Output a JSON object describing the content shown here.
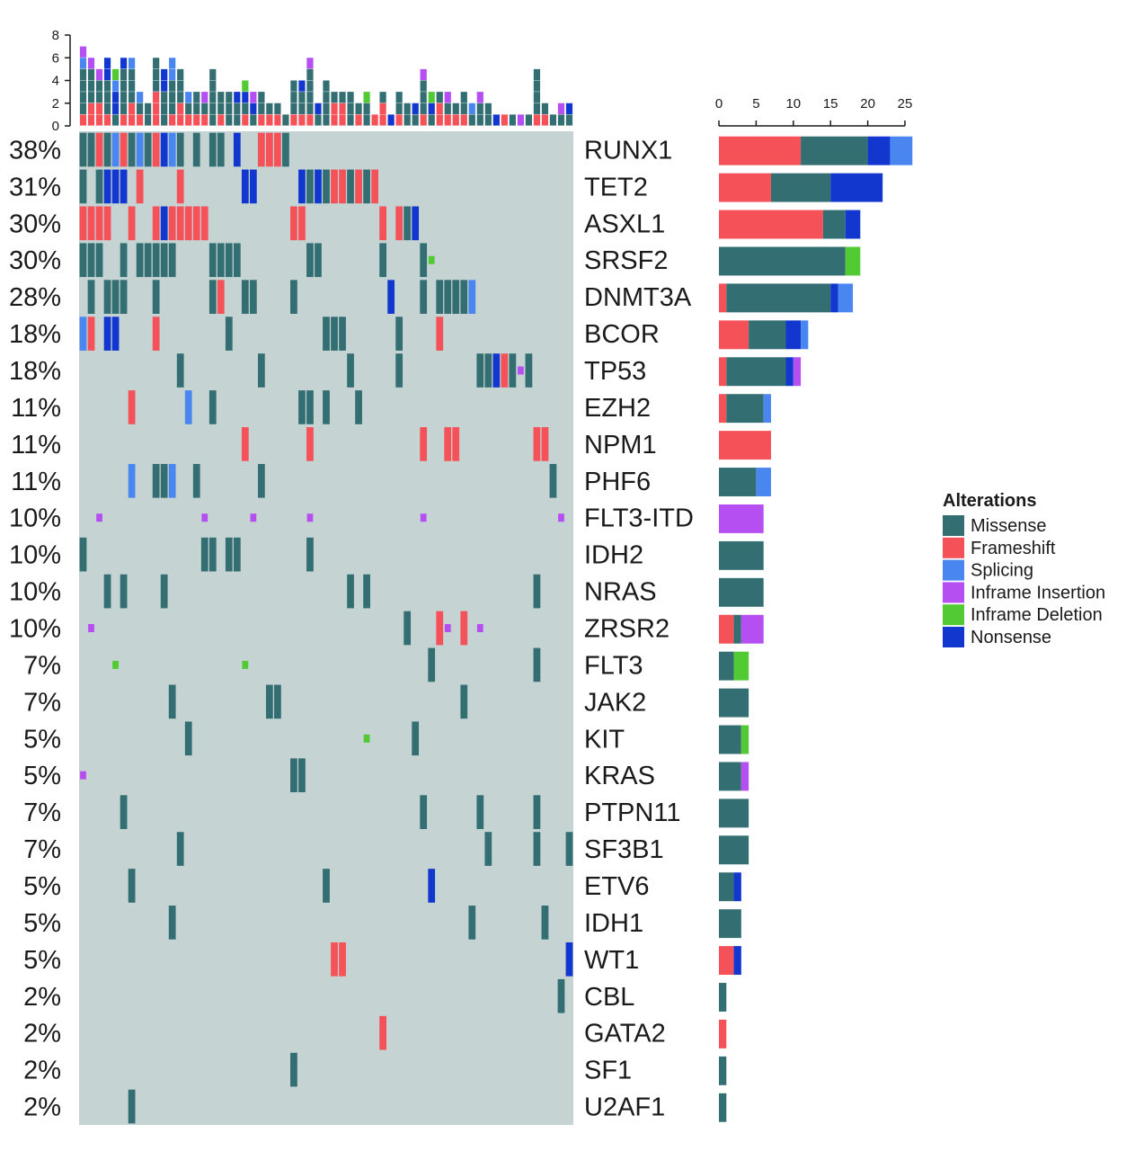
{
  "chart_data": {
    "type": "heatmap",
    "title": "",
    "genes": [
      "RUNX1",
      "TET2",
      "ASXL1",
      "SRSF2",
      "DNMT3A",
      "BCOR",
      "TP53",
      "EZH2",
      "NPM1",
      "PHF6",
      "FLT3-ITD",
      "IDH2",
      "NRAS",
      "ZRSR2",
      "FLT3",
      "JAK2",
      "KIT",
      "KRAS",
      "PTPN11",
      "SF3B1",
      "ETV6",
      "IDH1",
      "WT1",
      "CBL",
      "GATA2",
      "SF1",
      "U2AF1"
    ],
    "percentages": [
      "38%",
      "31%",
      "30%",
      "30%",
      "28%",
      "18%",
      "18%",
      "11%",
      "11%",
      "11%",
      "10%",
      "10%",
      "10%",
      "10%",
      "7%",
      "7%",
      "5%",
      "5%",
      "7%",
      "7%",
      "5%",
      "5%",
      "5%",
      "2%",
      "2%",
      "2%",
      "2%"
    ],
    "gene_counts": {
      "series": [
        {
          "name": "Frameshift",
          "values": [
            11,
            7,
            14,
            0,
            1,
            4,
            1,
            1,
            7,
            0,
            0,
            0,
            0,
            2,
            0,
            0,
            0,
            0,
            0,
            0,
            0,
            0,
            2,
            0,
            1,
            0,
            0
          ]
        },
        {
          "name": "Missense",
          "values": [
            9,
            8,
            3,
            17,
            14,
            5,
            8,
            5,
            0,
            5,
            0,
            6,
            6,
            1,
            2,
            4,
            3,
            3,
            4,
            4,
            2,
            3,
            0,
            1,
            0,
            1,
            1
          ]
        },
        {
          "name": "Nonsense",
          "values": [
            3,
            7,
            2,
            0,
            1,
            2,
            1,
            0,
            0,
            0,
            0,
            0,
            0,
            0,
            0,
            0,
            0,
            0,
            0,
            0,
            1,
            0,
            1,
            0,
            0,
            0,
            0
          ]
        },
        {
          "name": "Splicing",
          "values": [
            3,
            0,
            0,
            0,
            2,
            1,
            0,
            1,
            0,
            2,
            0,
            0,
            0,
            0,
            0,
            0,
            0,
            0,
            0,
            0,
            0,
            0,
            0,
            0,
            0,
            0,
            0
          ]
        },
        {
          "name": "Inframe Insertion",
          "values": [
            0,
            0,
            0,
            0,
            0,
            0,
            1,
            0,
            0,
            0,
            6,
            0,
            0,
            3,
            0,
            0,
            0,
            1,
            0,
            0,
            0,
            0,
            0,
            0,
            0,
            0,
            0
          ]
        },
        {
          "name": "Inframe Deletion",
          "values": [
            0,
            0,
            0,
            2,
            0,
            0,
            0,
            0,
            0,
            0,
            0,
            0,
            0,
            0,
            2,
            0,
            1,
            0,
            0,
            0,
            0,
            0,
            0,
            0,
            0,
            0,
            0
          ]
        }
      ],
      "xlim": [
        0,
        25
      ],
      "xticks": [
        "0",
        "5",
        "10",
        "15",
        "20",
        "25"
      ]
    },
    "sample_axis": {
      "ylim": [
        0,
        8
      ],
      "yticks": [
        "0",
        "2",
        "4",
        "6",
        "8"
      ]
    },
    "legend": {
      "title": "Alterations",
      "items": [
        {
          "label": "Missense",
          "color": "#336e72"
        },
        {
          "label": "Frameshift",
          "color": "#f45158"
        },
        {
          "label": "Splicing",
          "color": "#4a86f0"
        },
        {
          "label": "Inframe Insertion",
          "color": "#b54ff2"
        },
        {
          "label": "Inframe Deletion",
          "color": "#52ca33"
        },
        {
          "label": "Nonsense",
          "color": "#1237cf"
        }
      ]
    },
    "colors": {
      "Missense": "#336e72",
      "Frameshift": "#f45158",
      "Splicing": "#4a86f0",
      "Inframe Insertion": "#b54ff2",
      "Inframe Deletion": "#52ca33",
      "Nonsense": "#1237cf",
      "background": "#c5d3d3"
    },
    "n_samples": 61,
    "alterations": [
      [
        0,
        0,
        "M"
      ],
      [
        0,
        1,
        "M"
      ],
      [
        0,
        2,
        "F"
      ],
      [
        0,
        3,
        "M"
      ],
      [
        0,
        4,
        "S"
      ],
      [
        0,
        5,
        "F"
      ],
      [
        0,
        6,
        "M"
      ],
      [
        0,
        7,
        "S"
      ],
      [
        0,
        8,
        "M"
      ],
      [
        0,
        9,
        "F"
      ],
      [
        0,
        10,
        "N"
      ],
      [
        0,
        11,
        "S"
      ],
      [
        0,
        12,
        "M"
      ],
      [
        0,
        14,
        "M"
      ],
      [
        0,
        16,
        "M"
      ],
      [
        0,
        17,
        "M"
      ],
      [
        0,
        19,
        "N"
      ],
      [
        0,
        22,
        "F"
      ],
      [
        0,
        23,
        "F"
      ],
      [
        0,
        24,
        "F"
      ],
      [
        0,
        25,
        "M"
      ],
      [
        1,
        0,
        "M"
      ],
      [
        1,
        2,
        "M"
      ],
      [
        1,
        3,
        "N"
      ],
      [
        1,
        4,
        "N"
      ],
      [
        1,
        5,
        "N"
      ],
      [
        1,
        7,
        "F"
      ],
      [
        1,
        12,
        "F"
      ],
      [
        1,
        20,
        "N"
      ],
      [
        1,
        21,
        "N"
      ],
      [
        1,
        27,
        "N"
      ],
      [
        1,
        28,
        "M"
      ],
      [
        1,
        29,
        "N"
      ],
      [
        1,
        30,
        "M"
      ],
      [
        1,
        31,
        "F"
      ],
      [
        1,
        32,
        "F"
      ],
      [
        1,
        33,
        "M"
      ],
      [
        1,
        34,
        "F"
      ],
      [
        1,
        35,
        "M"
      ],
      [
        1,
        36,
        "F"
      ],
      [
        2,
        0,
        "F"
      ],
      [
        2,
        1,
        "F"
      ],
      [
        2,
        2,
        "F"
      ],
      [
        2,
        3,
        "F"
      ],
      [
        2,
        6,
        "F"
      ],
      [
        2,
        9,
        "F"
      ],
      [
        2,
        10,
        "N"
      ],
      [
        2,
        11,
        "F"
      ],
      [
        2,
        12,
        "F"
      ],
      [
        2,
        13,
        "F"
      ],
      [
        2,
        14,
        "F"
      ],
      [
        2,
        15,
        "F"
      ],
      [
        2,
        26,
        "F"
      ],
      [
        2,
        27,
        "F"
      ],
      [
        2,
        37,
        "F"
      ],
      [
        2,
        39,
        "F"
      ],
      [
        2,
        40,
        "M"
      ],
      [
        2,
        41,
        "N"
      ],
      [
        3,
        0,
        "M"
      ],
      [
        3,
        1,
        "M"
      ],
      [
        3,
        2,
        "M"
      ],
      [
        3,
        5,
        "M"
      ],
      [
        3,
        7,
        "M"
      ],
      [
        3,
        8,
        "M"
      ],
      [
        3,
        9,
        "M"
      ],
      [
        3,
        10,
        "M"
      ],
      [
        3,
        11,
        "M"
      ],
      [
        3,
        16,
        "M"
      ],
      [
        3,
        17,
        "M"
      ],
      [
        3,
        18,
        "M"
      ],
      [
        3,
        19,
        "M"
      ],
      [
        3,
        28,
        "M"
      ],
      [
        3,
        29,
        "M"
      ],
      [
        3,
        37,
        "M"
      ],
      [
        3,
        42,
        "M"
      ],
      [
        3,
        43,
        "D"
      ],
      [
        4,
        1,
        "M"
      ],
      [
        4,
        3,
        "M"
      ],
      [
        4,
        4,
        "M"
      ],
      [
        4,
        5,
        "M"
      ],
      [
        4,
        9,
        "M"
      ],
      [
        4,
        16,
        "M"
      ],
      [
        4,
        17,
        "F"
      ],
      [
        4,
        20,
        "M"
      ],
      [
        4,
        21,
        "M"
      ],
      [
        4,
        26,
        "M"
      ],
      [
        4,
        38,
        "N"
      ],
      [
        4,
        42,
        "M"
      ],
      [
        4,
        44,
        "M"
      ],
      [
        4,
        45,
        "M"
      ],
      [
        4,
        46,
        "M"
      ],
      [
        4,
        47,
        "M"
      ],
      [
        4,
        48,
        "S"
      ],
      [
        5,
        0,
        "S"
      ],
      [
        5,
        1,
        "F"
      ],
      [
        5,
        3,
        "N"
      ],
      [
        5,
        4,
        "N"
      ],
      [
        5,
        9,
        "F"
      ],
      [
        5,
        18,
        "M"
      ],
      [
        5,
        30,
        "M"
      ],
      [
        5,
        31,
        "M"
      ],
      [
        5,
        32,
        "M"
      ],
      [
        5,
        39,
        "M"
      ],
      [
        5,
        44,
        "F"
      ],
      [
        6,
        12,
        "M"
      ],
      [
        6,
        22,
        "M"
      ],
      [
        6,
        33,
        "M"
      ],
      [
        6,
        39,
        "M"
      ],
      [
        6,
        49,
        "M"
      ],
      [
        6,
        50,
        "M"
      ],
      [
        6,
        51,
        "N"
      ],
      [
        6,
        52,
        "F"
      ],
      [
        6,
        53,
        "M"
      ],
      [
        6,
        54,
        "I"
      ],
      [
        6,
        55,
        "M"
      ],
      [
        7,
        6,
        "F"
      ],
      [
        7,
        13,
        "S"
      ],
      [
        7,
        16,
        "M"
      ],
      [
        7,
        27,
        "M"
      ],
      [
        7,
        28,
        "M"
      ],
      [
        7,
        30,
        "M"
      ],
      [
        7,
        34,
        "M"
      ],
      [
        8,
        20,
        "F"
      ],
      [
        8,
        28,
        "F"
      ],
      [
        8,
        42,
        "F"
      ],
      [
        8,
        45,
        "F"
      ],
      [
        8,
        46,
        "F"
      ],
      [
        8,
        56,
        "F"
      ],
      [
        8,
        57,
        "F"
      ],
      [
        9,
        6,
        "S"
      ],
      [
        9,
        9,
        "M"
      ],
      [
        9,
        10,
        "M"
      ],
      [
        9,
        11,
        "S"
      ],
      [
        9,
        14,
        "M"
      ],
      [
        9,
        22,
        "M"
      ],
      [
        9,
        58,
        "M"
      ],
      [
        10,
        2,
        "I"
      ],
      [
        10,
        15,
        "I"
      ],
      [
        10,
        21,
        "I"
      ],
      [
        10,
        28,
        "I"
      ],
      [
        10,
        42,
        "I"
      ],
      [
        10,
        59,
        "I"
      ],
      [
        11,
        0,
        "M"
      ],
      [
        11,
        15,
        "M"
      ],
      [
        11,
        16,
        "M"
      ],
      [
        11,
        18,
        "M"
      ],
      [
        11,
        19,
        "M"
      ],
      [
        11,
        28,
        "M"
      ],
      [
        12,
        3,
        "M"
      ],
      [
        12,
        5,
        "M"
      ],
      [
        12,
        10,
        "M"
      ],
      [
        12,
        33,
        "M"
      ],
      [
        12,
        35,
        "M"
      ],
      [
        12,
        56,
        "M"
      ],
      [
        13,
        1,
        "I"
      ],
      [
        13,
        40,
        "M"
      ],
      [
        13,
        44,
        "F"
      ],
      [
        13,
        45,
        "I"
      ],
      [
        13,
        47,
        "F"
      ],
      [
        13,
        49,
        "I"
      ],
      [
        14,
        4,
        "D"
      ],
      [
        14,
        20,
        "D"
      ],
      [
        14,
        43,
        "M"
      ],
      [
        14,
        56,
        "M"
      ],
      [
        15,
        11,
        "M"
      ],
      [
        15,
        23,
        "M"
      ],
      [
        15,
        24,
        "M"
      ],
      [
        15,
        47,
        "M"
      ],
      [
        16,
        13,
        "M"
      ],
      [
        16,
        35,
        "D"
      ],
      [
        16,
        41,
        "M"
      ],
      [
        17,
        0,
        "I"
      ],
      [
        17,
        26,
        "M"
      ],
      [
        17,
        27,
        "M"
      ],
      [
        18,
        5,
        "M"
      ],
      [
        18,
        42,
        "M"
      ],
      [
        18,
        49,
        "M"
      ],
      [
        18,
        56,
        "M"
      ],
      [
        19,
        12,
        "M"
      ],
      [
        19,
        50,
        "M"
      ],
      [
        19,
        56,
        "M"
      ],
      [
        19,
        60,
        "M"
      ],
      [
        20,
        6,
        "M"
      ],
      [
        20,
        30,
        "M"
      ],
      [
        20,
        43,
        "N"
      ],
      [
        21,
        11,
        "M"
      ],
      [
        21,
        48,
        "M"
      ],
      [
        21,
        57,
        "M"
      ],
      [
        22,
        31,
        "F"
      ],
      [
        22,
        32,
        "F"
      ],
      [
        22,
        60,
        "N"
      ],
      [
        23,
        59,
        "M"
      ],
      [
        24,
        37,
        "F"
      ],
      [
        25,
        26,
        "M"
      ],
      [
        26,
        6,
        "M"
      ]
    ]
  }
}
